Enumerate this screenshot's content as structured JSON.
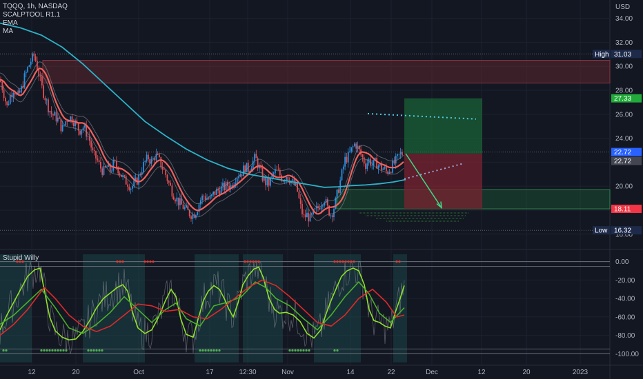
{
  "header": {
    "symbol_line": "TQQQ, 1h, NASDAQ",
    "indicators": [
      "SCALPTOOL R1.1",
      "EMA",
      "MA"
    ]
  },
  "lower_pane": {
    "title": "Stupid Willy"
  },
  "colors": {
    "background": "#131722",
    "grid": "#1e222d",
    "candle_up": "#2a8fe0",
    "candle_down": "#e04f55",
    "ma_line": "#2bb3c9",
    "ema_band": "#f0625d",
    "green_line": "#8ee02a",
    "red_line": "#e02a2a",
    "target_zone": "#1f6b3a",
    "stop_zone": "#7a2330",
    "resistance_zone": "#6b2a33"
  },
  "chart_data": [
    {
      "type": "candlestick",
      "currency_label": "USD",
      "y_ticks": [
        "34.00",
        "32.00",
        "30.00",
        "28.00",
        "26.00",
        "24.00",
        "22.00",
        "20.00",
        "18.00",
        "16.00"
      ],
      "ylim": [
        15.7,
        35.3
      ],
      "x_ticks": [
        "12",
        "20",
        "Oct",
        "17",
        "12:30",
        "Nov",
        "14",
        "22",
        "Dec",
        "12",
        "20",
        "2023"
      ],
      "price_tags": [
        {
          "label": "High",
          "value": "31.03",
          "y": 31.03,
          "color": "#1e2a4a"
        },
        {
          "label": "",
          "value": "27.33",
          "y": 27.33,
          "color": "#22ab3a"
        },
        {
          "label": "",
          "value": "22.72",
          "y": 22.85,
          "color": "#2962ff"
        },
        {
          "label": "",
          "value": "22.72",
          "y": 22.1,
          "color": "#434651"
        },
        {
          "label": "",
          "value": "18.11",
          "y": 18.11,
          "color": "#f23645"
        },
        {
          "label": "Low",
          "value": "16.32",
          "y": 16.32,
          "color": "#1e2a4a"
        }
      ],
      "close_series": [
        [
          0,
          28.9
        ],
        [
          5,
          27.9
        ],
        [
          10,
          26.6
        ],
        [
          15,
          27.6
        ],
        [
          20,
          28.2
        ],
        [
          25,
          27.4
        ],
        [
          30,
          27.9
        ],
        [
          35,
          29.0
        ],
        [
          40,
          29.8
        ],
        [
          45,
          30.5
        ],
        [
          50,
          30.9
        ],
        [
          55,
          29.7
        ],
        [
          60,
          28.3
        ],
        [
          65,
          27.5
        ],
        [
          70,
          26.6
        ],
        [
          75,
          26.0
        ],
        [
          80,
          25.8
        ],
        [
          85,
          25.5
        ],
        [
          90,
          24.7
        ],
        [
          95,
          25.4
        ],
        [
          100,
          25.8
        ],
        [
          105,
          25.6
        ],
        [
          110,
          25.2
        ],
        [
          115,
          24.6
        ],
        [
          120,
          25.0
        ],
        [
          125,
          24.5
        ],
        [
          130,
          23.8
        ],
        [
          135,
          22.6
        ],
        [
          140,
          22.3
        ],
        [
          145,
          21.6
        ],
        [
          150,
          21.2
        ],
        [
          155,
          21.6
        ],
        [
          160,
          21.3
        ],
        [
          165,
          21.9
        ],
        [
          170,
          21.6
        ],
        [
          175,
          21.0
        ],
        [
          180,
          20.5
        ],
        [
          185,
          20.3
        ],
        [
          190,
          19.9
        ],
        [
          195,
          20.2
        ],
        [
          200,
          20.6
        ],
        [
          205,
          21.4
        ],
        [
          210,
          22.0
        ],
        [
          215,
          22.4
        ],
        [
          220,
          22.0
        ],
        [
          225,
          22.6
        ],
        [
          230,
          22.2
        ],
        [
          235,
          21.6
        ],
        [
          240,
          21.0
        ],
        [
          245,
          20.2
        ],
        [
          250,
          19.5
        ],
        [
          255,
          19.0
        ],
        [
          260,
          18.6
        ],
        [
          265,
          18.3
        ],
        [
          270,
          18.0
        ],
        [
          275,
          17.7
        ],
        [
          280,
          17.6
        ],
        [
          285,
          18.0
        ],
        [
          290,
          18.8
        ],
        [
          295,
          19.2
        ],
        [
          300,
          19.0
        ],
        [
          305,
          18.9
        ],
        [
          310,
          19.4
        ],
        [
          315,
          19.6
        ],
        [
          320,
          19.8
        ],
        [
          325,
          19.9
        ],
        [
          330,
          20.1
        ],
        [
          335,
          20.0
        ],
        [
          340,
          20.6
        ],
        [
          345,
          21.0
        ],
        [
          350,
          21.1
        ],
        [
          355,
          21.6
        ],
        [
          360,
          21.4
        ],
        [
          365,
          21.9
        ],
        [
          370,
          22.4
        ],
        [
          375,
          21.6
        ],
        [
          380,
          20.8
        ],
        [
          385,
          20.3
        ],
        [
          390,
          20.2
        ],
        [
          395,
          20.9
        ],
        [
          400,
          21.3
        ],
        [
          405,
          21.0
        ],
        [
          410,
          20.6
        ],
        [
          415,
          20.9
        ],
        [
          420,
          20.6
        ],
        [
          425,
          20.2
        ],
        [
          430,
          19.9
        ],
        [
          435,
          18.4
        ],
        [
          440,
          17.4
        ],
        [
          445,
          17.6
        ],
        [
          450,
          17.2
        ],
        [
          455,
          17.8
        ],
        [
          460,
          18.1
        ],
        [
          465,
          18.6
        ],
        [
          470,
          19.0
        ],
        [
          475,
          18.1
        ],
        [
          480,
          17.6
        ],
        [
          485,
          18.4
        ],
        [
          490,
          19.6
        ],
        [
          495,
          20.9
        ],
        [
          500,
          22.2
        ],
        [
          505,
          22.5
        ],
        [
          510,
          23.1
        ],
        [
          515,
          23.6
        ],
        [
          520,
          23.0
        ],
        [
          525,
          22.4
        ],
        [
          530,
          21.8
        ],
        [
          535,
          22.2
        ],
        [
          540,
          21.7
        ],
        [
          545,
          22.0
        ],
        [
          550,
          21.6
        ],
        [
          555,
          21.5
        ],
        [
          560,
          21.2
        ],
        [
          565,
          21.4
        ],
        [
          570,
          21.8
        ],
        [
          575,
          22.2
        ],
        [
          580,
          22.7
        ],
        [
          585,
          22.72
        ]
      ],
      "ma_series": [
        [
          0,
          33.6
        ],
        [
          30,
          33.2
        ],
        [
          60,
          32.6
        ],
        [
          90,
          31.6
        ],
        [
          120,
          30.2
        ],
        [
          150,
          28.6
        ],
        [
          180,
          27.0
        ],
        [
          210,
          25.4
        ],
        [
          240,
          24.2
        ],
        [
          270,
          23.1
        ],
        [
          300,
          22.2
        ],
        [
          330,
          21.5
        ],
        [
          360,
          21.0
        ],
        [
          390,
          20.7
        ],
        [
          420,
          20.4
        ],
        [
          450,
          20.1
        ],
        [
          470,
          19.9
        ],
        [
          490,
          19.95
        ],
        [
          510,
          20.05
        ],
        [
          530,
          20.1
        ],
        [
          550,
          20.2
        ],
        [
          570,
          20.35
        ],
        [
          588,
          20.55
        ]
      ],
      "resistance_zone": [
        28.6,
        30.5
      ],
      "position": {
        "entry": 22.72,
        "target": 27.33,
        "stop": 18.11
      },
      "support_zone": [
        18.11,
        19.7
      ],
      "dotted_upper": [
        [
          533,
          26.05
        ],
        [
          690,
          25.6
        ]
      ],
      "dotted_lower": [
        [
          586,
          20.6
        ],
        [
          672,
          21.9
        ]
      ],
      "arrow": [
        [
          588,
          22.72
        ],
        [
          640,
          18.2
        ]
      ]
    },
    {
      "type": "line",
      "title": "Stupid Willy",
      "y_ticks": [
        "0.00",
        "-20.00",
        "-40.00",
        "-60.00",
        "-80.00",
        "-100.00"
      ],
      "ylim": [
        -105,
        5
      ],
      "series": [
        {
          "color": "#8ee02a",
          "values": [
            [
              0,
              -74
            ],
            [
              10,
              -58
            ],
            [
              20,
              -44
            ],
            [
              30,
              -30
            ],
            [
              40,
              -16
            ],
            [
              50,
              -9
            ],
            [
              58,
              -7
            ],
            [
              64,
              -30
            ],
            [
              72,
              -60
            ],
            [
              80,
              -75
            ],
            [
              90,
              -82
            ],
            [
              100,
              -85
            ],
            [
              110,
              -84
            ],
            [
              120,
              -76
            ],
            [
              130,
              -64
            ],
            [
              140,
              -50
            ],
            [
              150,
              -40
            ],
            [
              160,
              -34
            ],
            [
              170,
              -28
            ],
            [
              178,
              -25
            ],
            [
              185,
              -32
            ],
            [
              192,
              -55
            ],
            [
              200,
              -72
            ],
            [
              210,
              -78
            ],
            [
              220,
              -74
            ],
            [
              230,
              -60
            ],
            [
              240,
              -42
            ],
            [
              248,
              -30
            ],
            [
              255,
              -38
            ],
            [
              262,
              -62
            ],
            [
              270,
              -79
            ],
            [
              280,
              -82
            ],
            [
              288,
              -60
            ],
            [
              295,
              -42
            ],
            [
              302,
              -32
            ],
            [
              310,
              -26
            ],
            [
              318,
              -30
            ],
            [
              325,
              -40
            ],
            [
              332,
              -52
            ],
            [
              338,
              -60
            ],
            [
              345,
              -45
            ],
            [
              352,
              -25
            ],
            [
              360,
              -15
            ],
            [
              368,
              -8
            ],
            [
              375,
              -6
            ],
            [
              382,
              -18
            ],
            [
              390,
              -40
            ],
            [
              398,
              -52
            ],
            [
              405,
              -56
            ],
            [
              415,
              -55
            ],
            [
              425,
              -58
            ],
            [
              435,
              -65
            ],
            [
              445,
              -78
            ],
            [
              455,
              -83
            ],
            [
              465,
              -74
            ],
            [
              473,
              -56
            ],
            [
              480,
              -42
            ],
            [
              488,
              -28
            ],
            [
              495,
              -16
            ],
            [
              503,
              -10
            ],
            [
              512,
              -7
            ],
            [
              520,
              -10
            ],
            [
              528,
              -25
            ],
            [
              535,
              -52
            ],
            [
              542,
              -64
            ],
            [
              550,
              -66
            ],
            [
              558,
              -70
            ],
            [
              566,
              -72
            ],
            [
              573,
              -55
            ],
            [
              580,
              -40
            ],
            [
              586,
              -26
            ]
          ]
        },
        {
          "color": "#4caf2a",
          "values": [
            [
              0,
              -68
            ],
            [
              20,
              -58
            ],
            [
              40,
              -44
            ],
            [
              60,
              -30
            ],
            [
              80,
              -50
            ],
            [
              100,
              -72
            ],
            [
              120,
              -78
            ],
            [
              140,
              -68
            ],
            [
              160,
              -55
            ],
            [
              180,
              -38
            ],
            [
              200,
              -52
            ],
            [
              220,
              -66
            ],
            [
              240,
              -52
            ],
            [
              255,
              -45
            ],
            [
              270,
              -62
            ],
            [
              290,
              -70
            ],
            [
              310,
              -48
            ],
            [
              330,
              -44
            ],
            [
              350,
              -38
            ],
            [
              370,
              -22
            ],
            [
              385,
              -28
            ],
            [
              400,
              -40
            ],
            [
              420,
              -48
            ],
            [
              440,
              -62
            ],
            [
              460,
              -74
            ],
            [
              480,
              -58
            ],
            [
              500,
              -38
            ],
            [
              520,
              -22
            ],
            [
              535,
              -35
            ],
            [
              550,
              -56
            ],
            [
              566,
              -66
            ],
            [
              586,
              -50
            ]
          ]
        },
        {
          "color": "#e02a2a",
          "values": [
            [
              0,
              -80
            ],
            [
              20,
              -68
            ],
            [
              40,
              -52
            ],
            [
              64,
              -28
            ],
            [
              80,
              -40
            ],
            [
              100,
              -58
            ],
            [
              120,
              -70
            ],
            [
              140,
              -76
            ],
            [
              160,
              -70
            ],
            [
              180,
              -58
            ],
            [
              200,
              -46
            ],
            [
              220,
              -48
            ],
            [
              240,
              -54
            ],
            [
              260,
              -52
            ],
            [
              280,
              -60
            ],
            [
              300,
              -62
            ],
            [
              320,
              -52
            ],
            [
              340,
              -40
            ],
            [
              360,
              -28
            ],
            [
              380,
              -20
            ],
            [
              400,
              -26
            ],
            [
              420,
              -38
            ],
            [
              440,
              -52
            ],
            [
              460,
              -66
            ],
            [
              480,
              -70
            ],
            [
              500,
              -58
            ],
            [
              520,
              -40
            ],
            [
              540,
              -30
            ],
            [
              560,
              -44
            ],
            [
              575,
              -60
            ],
            [
              586,
              -58
            ]
          ]
        }
      ]
    }
  ]
}
